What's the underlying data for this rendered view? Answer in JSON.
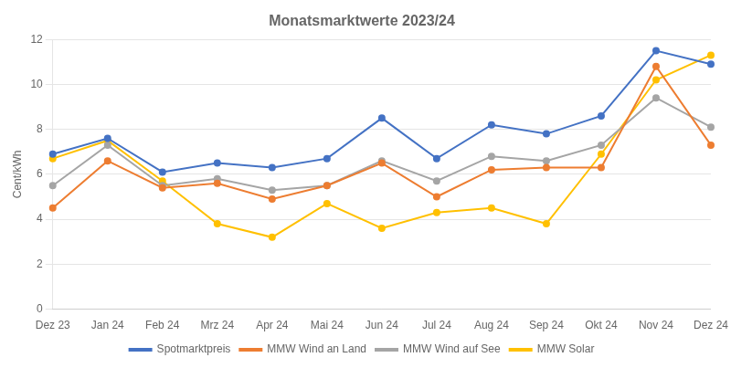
{
  "chart_data": {
    "type": "line",
    "title": "Monatsmarktwerte 2023/24",
    "ylabel": "Cent/kWh",
    "categories": [
      "Dez 23",
      "Jan 24",
      "Feb 24",
      "Mrz 24",
      "Apr 24",
      "Mai 24",
      "Jun 24",
      "Jul 24",
      "Aug 24",
      "Sep 24",
      "Okt 24",
      "Nov 24",
      "Dez 24"
    ],
    "series": [
      {
        "name": "Spotmarktpreis",
        "color": "#4472c4",
        "marker": "circle",
        "values": [
          6.9,
          7.6,
          6.1,
          6.5,
          6.3,
          6.7,
          8.5,
          6.7,
          8.2,
          7.8,
          8.6,
          11.5,
          10.9
        ]
      },
      {
        "name": "MMW Wind an Land",
        "color": "#ed7d31",
        "marker": "circle",
        "values": [
          4.5,
          6.6,
          5.4,
          5.6,
          4.9,
          5.5,
          6.5,
          5.0,
          6.2,
          6.3,
          6.3,
          10.8,
          7.3
        ]
      },
      {
        "name": "MMW Wind auf See",
        "color": "#a5a5a5",
        "marker": "circle",
        "values": [
          5.5,
          7.3,
          5.5,
          5.8,
          5.3,
          5.5,
          6.6,
          5.7,
          6.8,
          6.6,
          7.3,
          9.4,
          8.1
        ]
      },
      {
        "name": "MMW Solar",
        "color": "#ffc000",
        "marker": "circle",
        "values": [
          6.7,
          7.5,
          5.7,
          3.8,
          3.2,
          4.7,
          3.6,
          4.3,
          4.5,
          3.8,
          6.9,
          10.2,
          11.3
        ]
      }
    ],
    "ylim": [
      0,
      12
    ],
    "yticks": [
      0,
      2,
      4,
      6,
      8,
      10,
      12
    ],
    "grid": true,
    "legend": "bottom"
  }
}
